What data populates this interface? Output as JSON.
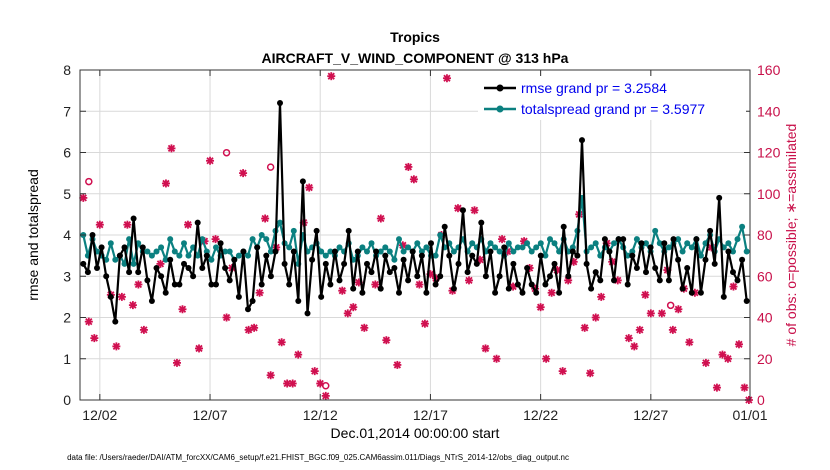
{
  "chart_data": {
    "type": "line",
    "title": "Tropics",
    "subtitle": "AIRCRAFT_V_WIND_COMPONENT @ 313 hPa",
    "xlabel": "Dec.01,2014 00:00:00 start",
    "ylabel": "rmse and totalspread",
    "ylabel_right": "# of obs: o=possible; ∗=assimilated",
    "footnote": "data file: /Users/raeder/DAI/ATM_forcXX/CAM6_setup/f.e21.FHIST_BGC.f09_025.CAM6assim.011/Diags_NTrS_2014-12/obs_diag_output.nc",
    "xlim": [
      0.6,
      31.0
    ],
    "ylim": [
      0,
      8
    ],
    "ylim_right": [
      0,
      160
    ],
    "x_ticks": [
      1.5,
      6.5,
      11.5,
      16.5,
      21.5,
      26.5,
      31.0
    ],
    "x_tick_labels": [
      "12/02",
      "12/07",
      "12/12",
      "12/17",
      "12/22",
      "12/27",
      "01/01"
    ],
    "y_ticks": [
      "0",
      "1",
      "2",
      "3",
      "4",
      "5",
      "6",
      "7",
      "8"
    ],
    "y_ticks_right": [
      "0",
      "20",
      "40",
      "60",
      "80",
      "100",
      "120",
      "140",
      "160"
    ],
    "grid": true,
    "legend_position": "top-right",
    "colors": {
      "rmse": "#000000",
      "totalspread": "#0b8080",
      "obs": "#d01050"
    },
    "series": [
      {
        "name": "rmse",
        "legend": "rmse grand pr = 3.2584",
        "values": [
          3.3,
          3.1,
          4.0,
          3.2,
          3.7,
          3.0,
          2.5,
          1.9,
          3.5,
          3.7,
          3.1,
          4.4,
          3.1,
          3.7,
          2.9,
          2.4,
          3.2,
          3.0,
          2.6,
          3.4,
          2.8,
          2.8,
          3.3,
          3.2,
          3.0,
          4.3,
          3.2,
          3.5,
          2.8,
          2.8,
          3.8,
          3.2,
          2.9,
          3.4,
          2.5,
          3.6,
          2.2,
          2.4,
          3.7,
          2.8,
          3.5,
          3.0,
          3.6,
          7.2,
          3.3,
          2.8,
          3.6,
          2.4,
          5.3,
          2.1,
          3.4,
          4.1,
          2.5,
          3.3,
          2.8,
          3.6,
          2.9,
          3.3,
          4.1,
          2.7,
          3.6,
          2.6,
          3.3,
          3.1,
          3.6,
          2.7,
          3.5,
          3.1,
          3.2,
          2.6,
          3.4,
          2.9,
          3.6,
          3.0,
          3.5,
          2.6,
          3.8,
          2.8,
          3.0,
          4.2,
          3.5,
          2.7,
          3.3,
          4.6,
          3.1,
          3.5,
          3.3,
          4.3,
          3.0,
          3.6,
          2.6,
          3.0,
          3.7,
          2.7,
          3.3,
          2.8,
          2.6,
          3.2,
          2.8,
          2.6,
          3.5,
          2.8,
          3.0,
          3.3,
          2.6,
          4.2,
          3.0,
          3.6,
          3.5,
          6.3,
          3.3,
          2.7,
          3.1,
          2.9,
          3.9,
          3.6,
          2.9,
          3.9,
          3.9,
          2.8,
          3.5,
          3.2,
          3.8,
          3.1,
          3.7,
          3.2,
          2.9,
          3.8,
          2.9,
          3.9,
          3.4,
          2.7,
          3.2,
          2.6,
          3.9,
          2.6,
          3.4,
          4.1,
          3.3,
          4.9,
          2.5,
          3.6,
          3.1,
          2.9,
          3.4,
          2.4
        ]
      },
      {
        "name": "totalspread",
        "legend": "totalspread grand pr = 3.5977",
        "values": [
          4.0,
          3.5,
          3.9,
          3.6,
          3.5,
          3.4,
          3.8,
          3.4,
          3.5,
          3.3,
          3.9,
          3.3,
          3.8,
          3.6,
          3.6,
          3.5,
          3.6,
          3.7,
          3.4,
          3.9,
          3.6,
          3.5,
          3.8,
          3.5,
          3.7,
          3.5,
          3.9,
          3.6,
          3.4,
          3.7,
          3.5,
          3.6,
          3.6,
          3.4,
          3.5,
          3.6,
          3.5,
          3.9,
          3.7,
          4.0,
          3.9,
          3.6,
          4.1,
          4.3,
          3.8,
          3.7,
          4.1,
          3.3,
          4.0,
          3.6,
          3.7,
          3.8,
          3.6,
          3.5,
          3.6,
          3.5,
          3.7,
          3.6,
          3.8,
          3.4,
          3.5,
          3.7,
          3.6,
          3.8,
          3.5,
          3.6,
          3.7,
          3.6,
          3.4,
          3.9,
          3.6,
          3.7,
          3.6,
          3.8,
          3.6,
          3.7,
          3.5,
          3.5,
          4.0,
          3.7,
          3.8,
          3.6,
          3.7,
          3.9,
          3.6,
          3.8,
          3.7,
          3.9,
          3.6,
          3.8,
          3.7,
          3.6,
          3.5,
          3.8,
          3.6,
          3.7,
          3.7,
          3.8,
          3.6,
          3.7,
          3.8,
          3.5,
          3.9,
          3.8,
          3.6,
          3.9,
          3.6,
          3.7,
          4.1,
          4.9,
          3.6,
          3.7,
          3.8,
          3.5,
          3.7,
          3.6,
          3.8,
          3.9,
          3.7,
          3.5,
          3.6,
          3.9,
          3.7,
          3.8,
          3.6,
          4.1,
          3.8,
          3.6,
          3.7,
          3.8,
          3.9,
          3.6,
          3.8,
          3.7,
          3.9,
          3.5,
          3.8,
          4.0,
          3.6,
          3.9,
          3.7,
          3.8,
          3.6,
          3.9,
          4.2,
          3.6
        ]
      }
    ],
    "obs_points": {
      "x": [
        0.75,
        1.0,
        1.25,
        1.5,
        2.0,
        2.25,
        2.5,
        2.75,
        3.0,
        3.25,
        3.5,
        4.25,
        4.5,
        4.75,
        5.0,
        5.25,
        5.5,
        6.0,
        6.25,
        6.5,
        6.75,
        7.25,
        7.5,
        8.0,
        8.25,
        8.5,
        8.75,
        9.0,
        9.25,
        9.5,
        9.75,
        10.0,
        10.25,
        10.5,
        10.75,
        11.0,
        11.25,
        11.5,
        11.75,
        12.0,
        12.5,
        12.75,
        13.0,
        13.25,
        13.5,
        14.0,
        14.25,
        14.5,
        15.0,
        15.25,
        15.5,
        15.75,
        16.0,
        16.25,
        16.5,
        16.75,
        17.0,
        17.25,
        17.5,
        17.75,
        18.25,
        18.5,
        18.75,
        19.0,
        19.5,
        19.75,
        20.0,
        20.25,
        20.75,
        21.0,
        21.25,
        21.5,
        21.75,
        22.0,
        22.25,
        22.5,
        22.75,
        23.0,
        23.25,
        23.5,
        23.75,
        24.0,
        24.25,
        24.5,
        24.75,
        25.0,
        25.5,
        25.75,
        26.0,
        26.25,
        26.5,
        27.0,
        27.25,
        27.5,
        27.75,
        28.0,
        28.25,
        28.5,
        29.0,
        29.25,
        29.5,
        29.75,
        30.0,
        30.25,
        30.5,
        30.75,
        30.95
      ],
      "y": [
        98,
        38,
        30,
        85,
        51,
        26,
        50,
        85,
        46,
        56,
        34,
        66,
        105,
        122,
        18,
        44,
        85,
        25,
        77,
        116,
        78,
        40,
        64,
        110,
        34,
        35,
        52,
        88,
        12,
        74,
        28,
        8,
        8,
        22,
        86,
        103,
        14,
        8,
        2,
        157,
        53,
        42,
        45,
        57,
        35,
        56,
        88,
        29,
        17,
        75,
        113,
        107,
        56,
        37,
        61,
        59,
        80,
        156,
        53,
        93,
        58,
        92,
        68,
        25,
        20,
        78,
        72,
        55,
        77,
        64,
        54,
        45,
        20,
        52,
        63,
        14,
        58,
        67,
        90,
        35,
        13,
        40,
        50,
        76,
        67,
        58,
        30,
        26,
        34,
        51,
        42,
        42,
        63,
        34,
        44,
        54,
        28,
        52,
        18,
        74,
        6,
        22,
        20,
        55,
        27,
        6,
        0
      ],
      "possible_ring": [
        [
          1.0,
          103
        ],
        [
          9.25,
          110
        ],
        [
          7.25,
          117
        ],
        [
          11.75,
          4
        ],
        [
          27.4,
          43
        ]
      ]
    }
  }
}
